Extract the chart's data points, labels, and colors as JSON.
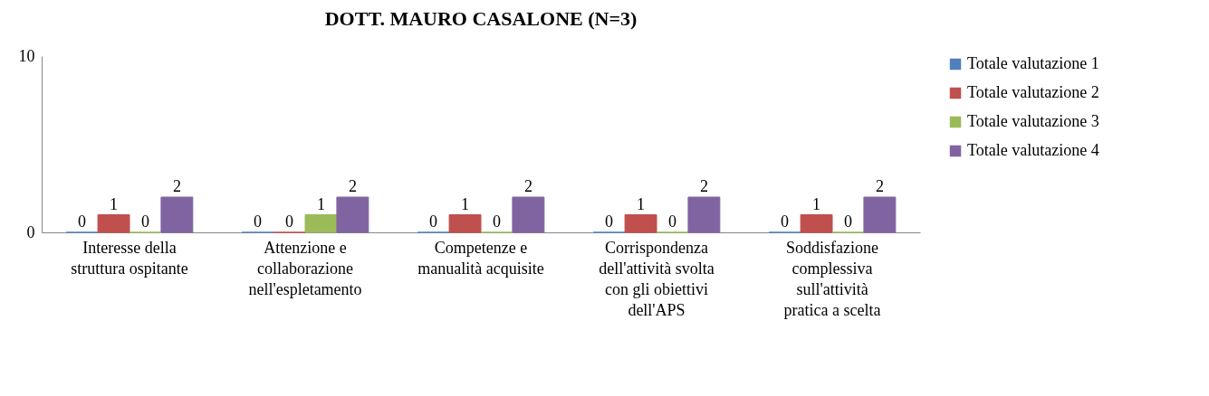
{
  "chart_data": {
    "type": "bar",
    "title": "DOTT. MAURO CASALONE (N=3)",
    "categories": [
      "Interesse della struttura ospitante",
      "Attenzione e collaborazione nell'espletamento",
      "Competenze e manualità acquisite",
      "Corrispondenza dell'attività svolta con gli obiettivi dell'APS",
      "Soddisfazione complessiva sull'attività pratica a scelta"
    ],
    "series": [
      {
        "name": "Totale valutazione 1",
        "color": "#4f81bd",
        "values": [
          0,
          0,
          0,
          0,
          0
        ]
      },
      {
        "name": "Totale valutazione 2",
        "color": "#c0504d",
        "values": [
          1,
          0,
          1,
          1,
          1
        ]
      },
      {
        "name": "Totale valutazione 3",
        "color": "#9bbb59",
        "values": [
          0,
          1,
          0,
          0,
          0
        ]
      },
      {
        "name": "Totale valutazione 4",
        "color": "#8064a2",
        "values": [
          2,
          2,
          2,
          2,
          2
        ]
      }
    ],
    "ylim": [
      0,
      10
    ],
    "yticks": [
      0,
      10
    ],
    "grid": false,
    "legend": "right",
    "data_labels": true
  }
}
